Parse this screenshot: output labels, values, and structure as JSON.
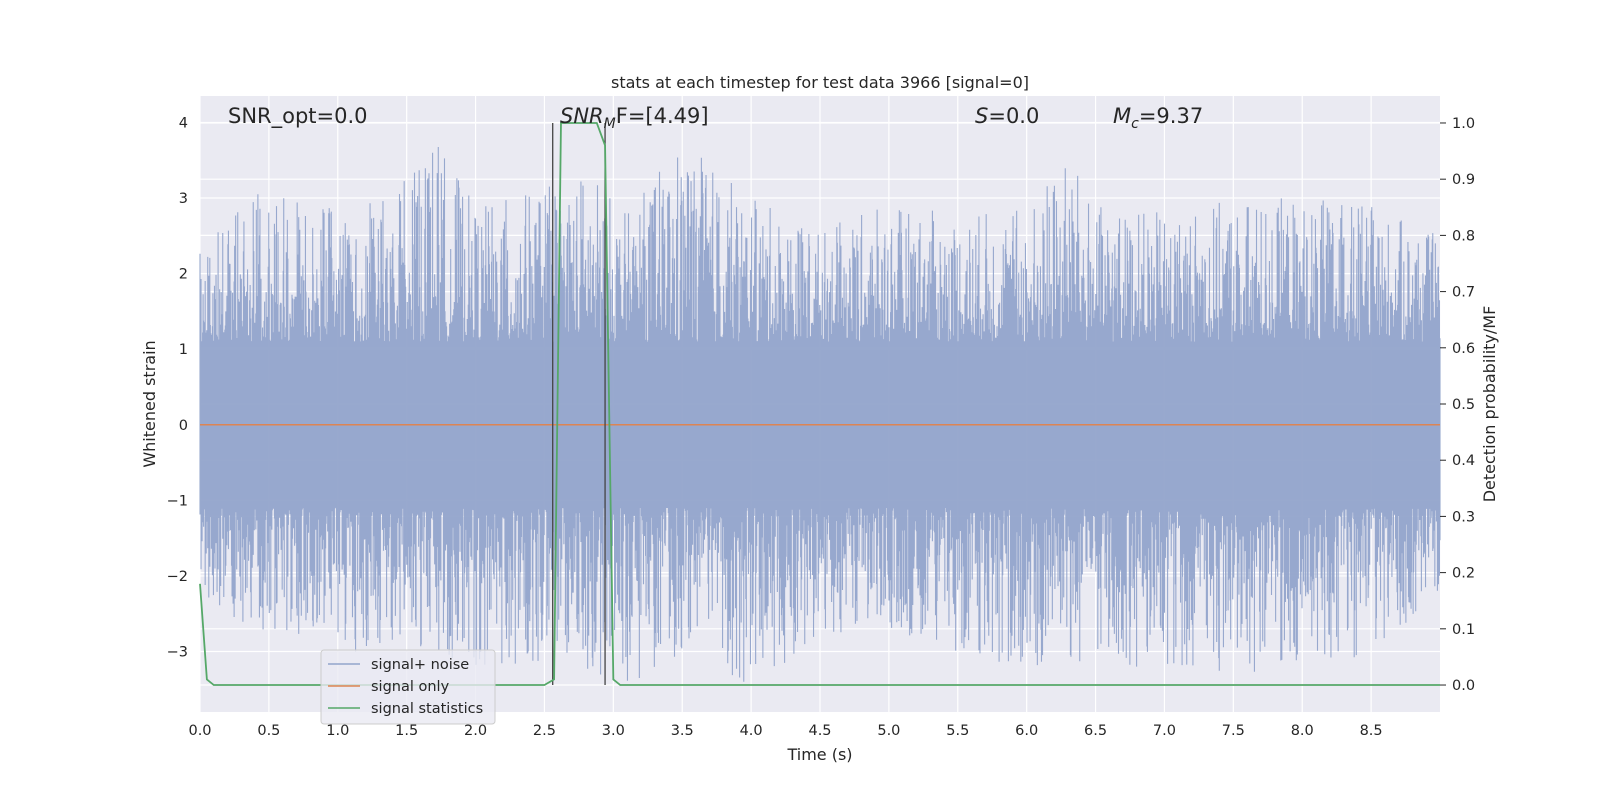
{
  "chart_data": {
    "type": "line",
    "title": "stats at each timestep for test data 3966 [signal=0]",
    "xlabel": "Time (s)",
    "ylabel_left": "Whitened strain",
    "ylabel_right": "Detection probability/MF",
    "xlim": [
      0,
      9.0
    ],
    "ylim_left": [
      -3.8,
      4.35
    ],
    "ylim_right": [
      -0.048,
      1.048
    ],
    "xticks": [
      "0.0",
      "0.5",
      "1.0",
      "1.5",
      "2.0",
      "2.5",
      "3.0",
      "3.5",
      "4.0",
      "4.5",
      "5.0",
      "5.5",
      "6.0",
      "6.5",
      "7.0",
      "7.5",
      "8.0",
      "8.5"
    ],
    "yticks_left": [
      "4",
      "3",
      "2",
      "1",
      "0",
      "−1",
      "−2",
      "−3"
    ],
    "yticks_right": [
      "1.0",
      "0.9",
      "0.8",
      "0.7",
      "0.6",
      "0.5",
      "0.4",
      "0.3",
      "0.2",
      "0.1",
      "0.0"
    ],
    "grid": true,
    "legend_position": "lower-left",
    "annotations": {
      "snr_opt": "SNR_opt=0.0",
      "snr_mf_main": "SNR",
      "snr_mf_sub": "M",
      "snr_mf_tail": "F=[4.49]",
      "s_main": "S",
      "s_tail": "=0.0",
      "mc_main": "M",
      "mc_sub": "c",
      "mc_tail": "=9.37"
    },
    "vlines_x": [
      2.56,
      2.94
    ],
    "series": [
      {
        "name": "signal+ noise",
        "color": "#92a4cb",
        "axis": "left",
        "description_level": "noise",
        "envelope_x": [
          0.0,
          0.4,
          1.1,
          1.5,
          1.65,
          2.0,
          2.6,
          2.8,
          3.1,
          3.5,
          4.0,
          4.5,
          5.0,
          5.5,
          6.0,
          6.3,
          6.5,
          7.0,
          7.5,
          8.0,
          8.5,
          9.0
        ],
        "envelope_top": [
          2.3,
          3.1,
          2.8,
          3.3,
          4.0,
          2.9,
          3.2,
          3.4,
          2.8,
          3.8,
          3.0,
          2.6,
          2.9,
          2.8,
          2.9,
          3.6,
          2.9,
          2.8,
          3.0,
          3.0,
          2.9,
          2.5
        ],
        "envelope_bottom": [
          -2.3,
          -2.7,
          -3.3,
          -2.9,
          -3.0,
          -3.2,
          -3.2,
          -3.4,
          -3.5,
          -3.0,
          -3.5,
          -2.8,
          -2.7,
          -3.0,
          -3.3,
          -3.4,
          -3.2,
          -3.2,
          -3.3,
          -3.2,
          -3.1,
          -2.3
        ]
      },
      {
        "name": "signal only",
        "color": "#dd8452",
        "axis": "left",
        "x": [
          0.0,
          9.0
        ],
        "y": [
          0.0,
          0.0
        ]
      },
      {
        "name": "signal statistics",
        "color": "#55a868",
        "axis": "right",
        "x": [
          0.0,
          0.05,
          0.1,
          2.3,
          2.5,
          2.57,
          2.62,
          2.68,
          2.75,
          2.88,
          2.94,
          3.0,
          3.05,
          3.1,
          9.0
        ],
        "y": [
          0.18,
          0.01,
          0.0,
          0.0,
          0.0,
          0.01,
          1.0,
          1.0,
          1.0,
          1.0,
          0.96,
          0.01,
          0.0,
          0.0,
          0.0
        ]
      }
    ]
  }
}
